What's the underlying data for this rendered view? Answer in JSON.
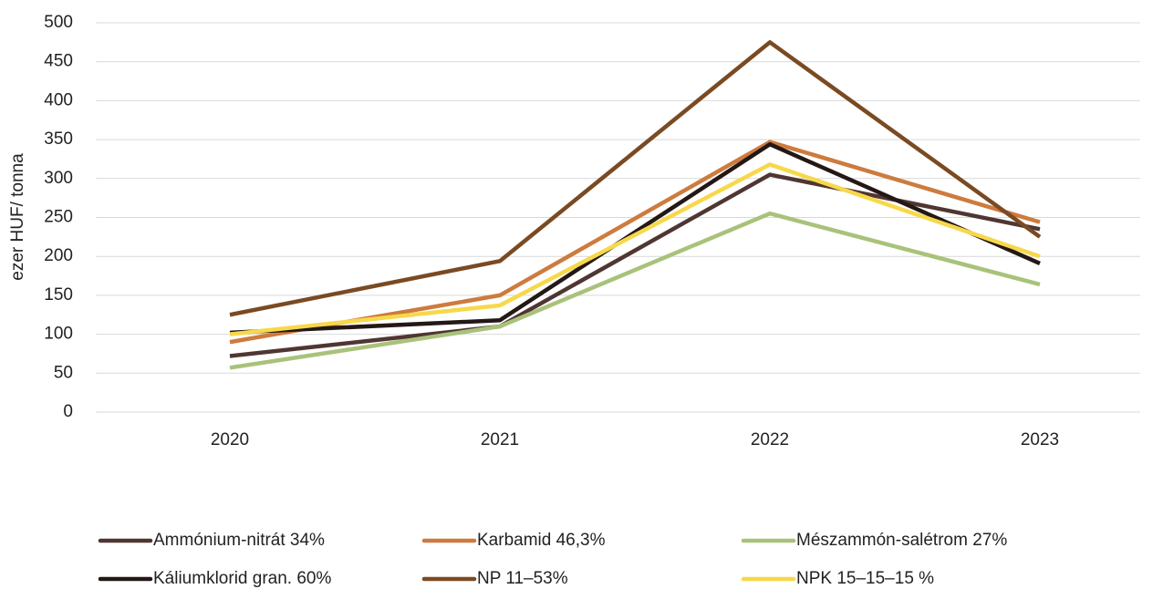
{
  "chart_data": {
    "type": "line",
    "y_label": "ezer HUF/ tonna",
    "categories": [
      "2020",
      "2021",
      "2022",
      "2023"
    ],
    "series": [
      {
        "name": "Ammónium-nitrát 34%",
        "color": "#4f3632",
        "values": [
          72,
          110,
          305,
          235
        ]
      },
      {
        "name": "Karbamid 46,3%",
        "color": "#cd7b3e",
        "values": [
          90,
          150,
          347,
          244
        ]
      },
      {
        "name": "Mészammón-salétrom 27%",
        "color": "#a9c27a",
        "values": [
          57,
          110,
          255,
          164
        ]
      },
      {
        "name": "Káliumklorid gran. 60%",
        "color": "#231815",
        "values": [
          102,
          118,
          344,
          191
        ]
      },
      {
        "name": "NP 11–53%",
        "color": "#7a4a22",
        "values": [
          125,
          194,
          475,
          225
        ]
      },
      {
        "name": "NPK 15–15–15 %",
        "color": "#f7d84a",
        "values": [
          100,
          137,
          318,
          200
        ]
      }
    ],
    "ylim": [
      0,
      500
    ],
    "yticks": [
      0,
      50,
      100,
      150,
      200,
      250,
      300,
      350,
      400,
      450,
      500
    ],
    "grid": true
  }
}
